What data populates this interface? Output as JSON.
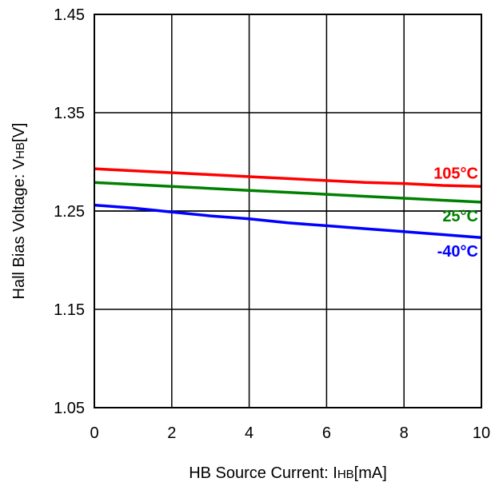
{
  "chart_data": {
    "type": "line",
    "xlabel": {
      "main": "HB Source Current: I",
      "sub": "HB",
      "tail": "[mA]"
    },
    "ylabel": {
      "main": "Hall Bias Voltage: V",
      "sub": "HB",
      "tail": "[V]"
    },
    "xlim": [
      0,
      10
    ],
    "ylim": [
      1.05,
      1.45
    ],
    "x_ticks": [
      "0",
      "2",
      "4",
      "6",
      "8",
      "10"
    ],
    "y_ticks": [
      "1.45",
      "1.35",
      "1.25",
      "1.15",
      "1.05"
    ],
    "x_tick_values": [
      0,
      2,
      4,
      6,
      8,
      10
    ],
    "y_tick_values": [
      1.45,
      1.35,
      1.25,
      1.15,
      1.05
    ],
    "grid": true,
    "extra_hline": 1.25,
    "series": [
      {
        "name": "105°C",
        "color": "#ff0000",
        "x": [
          0,
          1,
          2,
          3,
          4,
          5,
          6,
          7,
          8,
          9,
          10
        ],
        "y": [
          1.293,
          1.291,
          1.289,
          1.287,
          1.285,
          1.283,
          1.281,
          1.279,
          1.278,
          1.276,
          1.275
        ]
      },
      {
        "name": "25°C",
        "color": "#008000",
        "x": [
          0,
          1,
          2,
          3,
          4,
          5,
          6,
          7,
          8,
          9,
          10
        ],
        "y": [
          1.279,
          1.277,
          1.275,
          1.273,
          1.271,
          1.269,
          1.267,
          1.265,
          1.263,
          1.261,
          1.259
        ]
      },
      {
        "name": "-40°C",
        "color": "#0000ff",
        "x": [
          0,
          1,
          2,
          3,
          4,
          5,
          6,
          7,
          8,
          9,
          10
        ],
        "y": [
          1.256,
          1.253,
          1.249,
          1.245,
          1.242,
          1.238,
          1.235,
          1.232,
          1.229,
          1.226,
          1.223
        ]
      }
    ]
  }
}
